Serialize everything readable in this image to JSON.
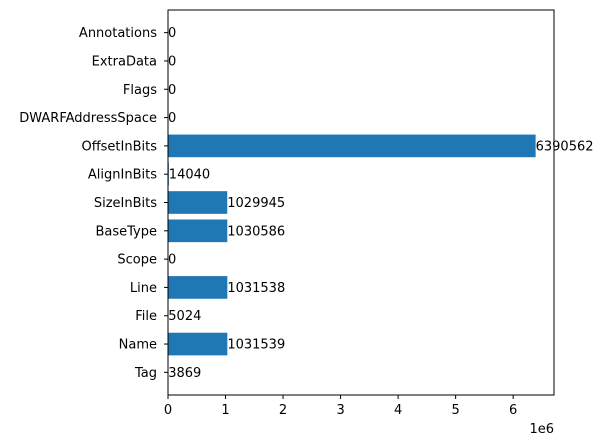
{
  "chart_data": {
    "type": "bar",
    "orientation": "horizontal",
    "title": "",
    "xlabel": "",
    "ylabel": "",
    "x_scale_label": "1e6",
    "xlim": [
      0,
      6710000
    ],
    "xticks": [
      0,
      1000000,
      2000000,
      3000000,
      4000000,
      5000000,
      6000000
    ],
    "xtick_labels": [
      "0",
      "1",
      "2",
      "3",
      "4",
      "5",
      "6"
    ],
    "categories": [
      "Tag",
      "Name",
      "File",
      "Line",
      "Scope",
      "BaseType",
      "SizeInBits",
      "AlignInBits",
      "OffsetInBits",
      "DWARFAddressSpace",
      "Flags",
      "ExtraData",
      "Annotations"
    ],
    "values": [
      3869,
      1031539,
      5024,
      1031538,
      0,
      1030586,
      1029945,
      14040,
      6390562,
      0,
      0,
      0,
      0
    ],
    "value_labels": [
      "3869",
      "1031539",
      "5024",
      "1031538",
      "0",
      "1030586",
      "1029945",
      "14040",
      "6390562",
      "0",
      "0",
      "0",
      "0"
    ],
    "bar_color": "#1f77b4",
    "grid": false,
    "legend": "none"
  }
}
